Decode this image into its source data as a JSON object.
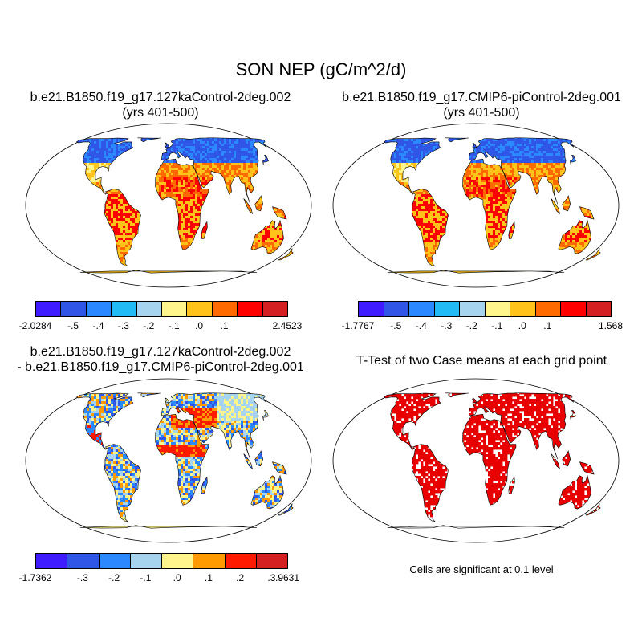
{
  "title": "SON NEP (gC/m^2/d)",
  "colors": {
    "palette_diverging": [
      "#3e1cff",
      "#2f56e6",
      "#2b88ff",
      "#22bbf5",
      "#a6d3ee",
      "#fff58c",
      "#ffc31a",
      "#ff6a00",
      "#ff0000",
      "#d42020"
    ],
    "difference_palette": [
      "#3e1cff",
      "#2f56e6",
      "#2b88ff",
      "#a6d3ee",
      "#fff58c",
      "#ff9a00",
      "#ff1a00",
      "#d42020"
    ],
    "significance": "#e80000",
    "coastline": "#000000",
    "ocean": "#ffffff"
  },
  "panels": {
    "p1": {
      "line1": "b.e21.B1850.f19_g17.127kaControl-2deg.002",
      "line2": "(yrs 401-500)"
    },
    "p2": {
      "line1": "b.e21.B1850.f19_g17.CMIP6-piControl-2deg.001",
      "line2": "(yrs 401-500)"
    },
    "p3": {
      "line1": "b.e21.B1850.f19_g17.127kaControl-2deg.002",
      "line2": "- b.e21.B1850.f19_g17.CMIP6-piControl-2deg.001"
    },
    "p4": {
      "line1": "T-Test of two Case means at each grid point",
      "note": "Cells are significant at 0.1 level"
    }
  },
  "colorbars": {
    "cb1": {
      "labels": [
        "-2.0284",
        "-.5",
        "-.4",
        "-.3",
        "-.2",
        "-.1",
        ".0",
        ".1",
        "2.4523"
      ]
    },
    "cb2": {
      "labels": [
        "-1.7767",
        "-.5",
        "-.4",
        "-.3",
        "-.2",
        "-.1",
        ".0",
        ".1",
        "1.568"
      ]
    },
    "cb3": {
      "labels": [
        "-1.7362",
        "-.3",
        "-.2",
        "-.1",
        ".0",
        ".1",
        ".2",
        ".3",
        ".9631"
      ]
    }
  },
  "chart_data": [
    {
      "type": "heatmap",
      "title": "b.e21.B1850.f19_g17.127kaControl-2deg.002 (yrs 401-500)",
      "projection": "Robinson",
      "levels": [
        -0.5,
        -0.4,
        -0.3,
        -0.2,
        -0.1,
        0.0,
        0.1
      ],
      "min": -2.0284,
      "max": 2.4523
    },
    {
      "type": "heatmap",
      "title": "b.e21.B1850.f19_g17.CMIP6-piControl-2deg.001 (yrs 401-500)",
      "projection": "Robinson",
      "levels": [
        -0.5,
        -0.4,
        -0.3,
        -0.2,
        -0.1,
        0.0,
        0.1
      ],
      "min": -1.7767,
      "max": 1.568
    },
    {
      "type": "heatmap",
      "title": "b.e21.B1850.f19_g17.127kaControl-2deg.002 - b.e21.B1850.f19_g17.CMIP6-piControl-2deg.001",
      "projection": "Robinson",
      "levels": [
        -0.3,
        -0.2,
        -0.1,
        0.0,
        0.1,
        0.2,
        0.3
      ],
      "min": -1.7362,
      "max": 0.9631
    },
    {
      "type": "heatmap",
      "title": "T-Test of two Case means at each grid point",
      "projection": "Robinson",
      "significance_level": 0.1
    }
  ]
}
